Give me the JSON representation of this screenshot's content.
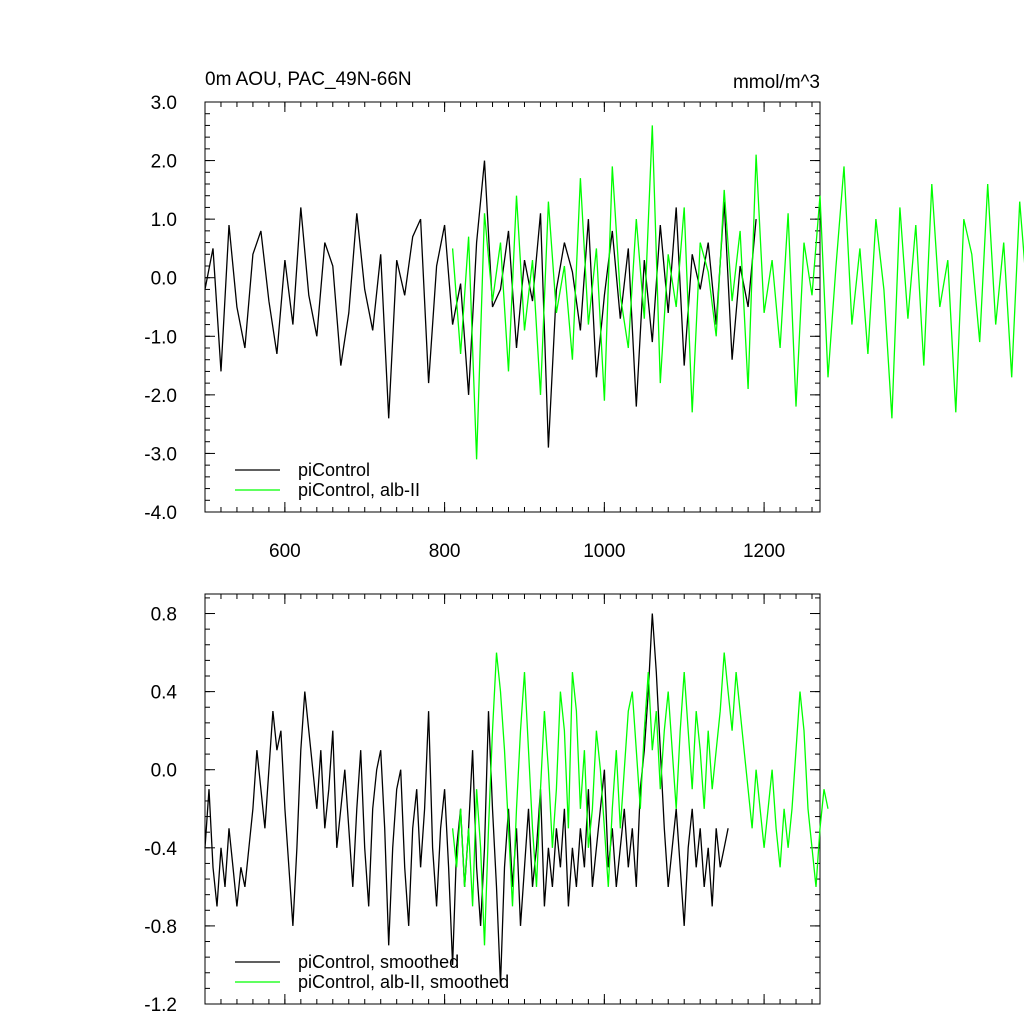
{
  "figure": {
    "title": "0m AOU, PAC_49N-66N",
    "units": "mmol/m^3",
    "background": "#ffffff"
  },
  "colors": {
    "black_series": "#000000",
    "green_series": "#00ff00",
    "axes": "#000000"
  },
  "chart_data": [
    {
      "type": "line",
      "title": "0m AOU, PAC_49N-66N",
      "units_label": "mmol/m^3",
      "xlabel": "",
      "ylabel": "",
      "xlim": [
        500,
        1270
      ],
      "ylim": [
        -4.0,
        3.0
      ],
      "xticks": [
        600,
        800,
        1000,
        1200
      ],
      "xtick_labels": [
        "600",
        "800",
        "1000",
        "1200"
      ],
      "yticks": [
        3.0,
        2.0,
        1.0,
        0.0,
        -1.0,
        -2.0,
        -3.0,
        -4.0
      ],
      "ytick_labels": [
        "3.0",
        "2.0",
        "1.0",
        "0.0",
        "-1.0",
        "-2.0",
        "-3.0",
        "-4.0"
      ],
      "legend_placement": "bottom-left",
      "grid": false,
      "series": [
        {
          "name": "piControl",
          "color": "#000000",
          "x_start": 500,
          "x_step": 10,
          "values": [
            -0.2,
            0.5,
            -1.6,
            0.9,
            -0.5,
            -1.2,
            0.4,
            0.8,
            -0.4,
            -1.3,
            0.3,
            -0.8,
            1.2,
            -0.3,
            -1.0,
            0.6,
            0.2,
            -1.5,
            -0.6,
            1.1,
            -0.2,
            -0.9,
            0.4,
            -2.4,
            0.3,
            -0.3,
            0.7,
            1.0,
            -1.8,
            0.2,
            0.9,
            -0.8,
            -0.1,
            -2.0,
            0.6,
            2.0,
            -0.5,
            -0.2,
            0.8,
            -1.2,
            0.3,
            -0.4,
            1.1,
            -2.9,
            -0.2,
            0.6,
            0.1,
            -0.9,
            1.0,
            -1.7,
            -0.3,
            0.8,
            -0.7,
            0.5,
            -2.2,
            0.3,
            -1.1,
            0.9,
            -0.6,
            1.2,
            -1.5,
            0.4,
            -0.2,
            0.6,
            -0.8,
            1.3,
            -1.4,
            0.2,
            -0.5,
            1.0
          ]
        },
        {
          "name": "piControl, alb-II",
          "color": "#00ff00",
          "x_start": 810,
          "x_step": 10,
          "values": [
            0.5,
            -1.3,
            0.7,
            -3.1,
            1.1,
            -0.4,
            0.6,
            -1.6,
            1.4,
            -0.9,
            0.3,
            -2.0,
            1.3,
            -0.6,
            0.2,
            -1.4,
            1.7,
            -0.8,
            0.5,
            -2.1,
            1.9,
            -0.3,
            -1.2,
            1.0,
            -0.7,
            2.6,
            -1.8,
            0.4,
            -0.5,
            1.2,
            -2.3,
            0.6,
            0.1,
            -1.0,
            1.5,
            -0.4,
            0.8,
            -1.9,
            2.1,
            -0.6,
            0.3,
            -1.2,
            1.1,
            -2.2,
            0.6,
            -0.3,
            1.4,
            -1.7,
            0.2,
            1.9,
            -0.8,
            0.5,
            -1.3,
            1.0,
            -0.2,
            -2.4,
            1.2,
            -0.7,
            0.9,
            -1.5,
            1.6,
            -0.5,
            0.3,
            -2.3,
            1.0,
            0.4,
            -1.1,
            1.6,
            -0.8,
            0.6,
            -1.7,
            1.3,
            -0.4,
            0.2,
            1.2,
            -1.0,
            0.5
          ]
        }
      ]
    },
    {
      "type": "line",
      "title": "",
      "xlabel": "",
      "ylabel": "",
      "xlim": [
        500,
        1270
      ],
      "ylim": [
        -1.2,
        0.9
      ],
      "xticks": [
        600,
        800,
        1000,
        1200
      ],
      "yticks": [
        0.8,
        0.4,
        0.0,
        -0.4,
        -0.8,
        -1.2
      ],
      "ytick_labels": [
        "0.8",
        "0.4",
        "0.0",
        "-0.4",
        "-0.8",
        "-1.2"
      ],
      "legend_placement": "bottom-left",
      "grid": false,
      "series": [
        {
          "name": "piControl, smoothed",
          "color": "#000000",
          "x_start": 500,
          "x_step": 5,
          "values": [
            -0.4,
            -0.1,
            -0.5,
            -0.7,
            -0.4,
            -0.6,
            -0.3,
            -0.5,
            -0.7,
            -0.5,
            -0.6,
            -0.4,
            -0.2,
            0.1,
            -0.1,
            -0.3,
            0.0,
            0.3,
            0.1,
            0.2,
            -0.2,
            -0.5,
            -0.8,
            -0.4,
            0.1,
            0.4,
            0.2,
            0.0,
            -0.2,
            0.1,
            -0.3,
            -0.1,
            0.2,
            -0.4,
            -0.2,
            0.0,
            -0.3,
            -0.6,
            -0.2,
            0.1,
            -0.4,
            -0.7,
            -0.2,
            0.0,
            0.1,
            -0.3,
            -0.9,
            -0.4,
            -0.1,
            0.0,
            -0.5,
            -0.8,
            -0.3,
            -0.1,
            -0.5,
            -0.2,
            0.3,
            -0.4,
            -0.7,
            -0.3,
            -0.1,
            -0.5,
            -1.0,
            -0.4,
            -0.2,
            -0.6,
            -0.3,
            0.1,
            -0.5,
            -0.8,
            -0.4,
            0.3,
            -0.2,
            -0.6,
            -1.1,
            -0.5,
            -0.2,
            -0.6,
            -0.3,
            -0.8,
            -0.5,
            -0.2,
            -0.6,
            -0.4,
            -0.1,
            -0.7,
            -0.4,
            -0.6,
            -0.3,
            -0.5,
            -0.2,
            -0.7,
            -0.4,
            -0.6,
            -0.3,
            -0.5,
            -0.1,
            -0.6,
            -0.4,
            -0.2,
            0.0,
            -0.5,
            -0.3,
            -0.6,
            -0.4,
            -0.2,
            -0.5,
            -0.3,
            -0.6,
            -0.1,
            0.1,
            0.4,
            0.8,
            0.5,
            0.1,
            -0.3,
            -0.6,
            -0.4,
            -0.2,
            -0.5,
            -0.8,
            -0.4,
            -0.2,
            -0.5,
            -0.3,
            -0.6,
            -0.4,
            -0.7,
            -0.3,
            -0.5,
            -0.4,
            -0.3
          ]
        },
        {
          "name": "piControl, alb-II, smoothed",
          "color": "#00ff00",
          "x_start": 810,
          "x_step": 5,
          "values": [
            -0.3,
            -0.5,
            -0.2,
            -0.6,
            -0.3,
            -0.7,
            -0.1,
            -0.4,
            -0.9,
            -0.3,
            0.2,
            0.6,
            0.4,
            0.1,
            -0.3,
            -0.7,
            -0.2,
            0.2,
            0.5,
            0.1,
            -0.3,
            -0.6,
            -0.1,
            0.3,
            0.0,
            -0.4,
            -0.1,
            0.4,
            0.2,
            -0.3,
            0.5,
            0.3,
            -0.2,
            0.1,
            -0.4,
            -0.2,
            0.2,
            0.0,
            -0.3,
            -0.6,
            -0.2,
            0.1,
            -0.3,
            0.0,
            0.3,
            0.4,
            0.1,
            -0.2,
            0.2,
            0.5,
            0.1,
            0.3,
            -0.1,
            0.2,
            0.4,
            0.1,
            -0.2,
            0.2,
            0.5,
            0.2,
            -0.1,
            0.3,
            0.1,
            -0.2,
            0.2,
            -0.1,
            0.1,
            0.3,
            0.6,
            0.4,
            0.2,
            0.5,
            0.3,
            0.1,
            -0.1,
            -0.3,
            0.0,
            -0.2,
            -0.4,
            -0.2,
            0.0,
            -0.3,
            -0.5,
            -0.2,
            -0.4,
            -0.2,
            0.1,
            0.4,
            0.2,
            -0.2,
            -0.4,
            -0.6,
            -0.3,
            -0.1,
            -0.2
          ]
        }
      ]
    }
  ]
}
